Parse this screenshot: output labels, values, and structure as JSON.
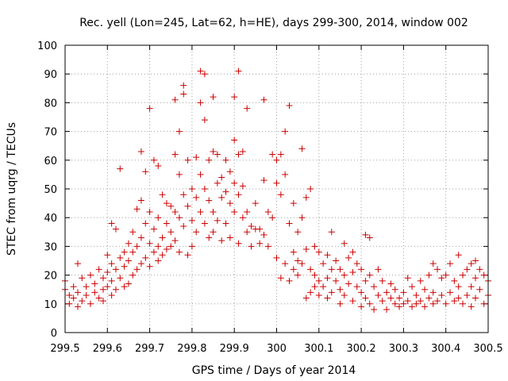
{
  "chart_data": {
    "type": "scatter",
    "title": "Rec. yell (Lon=245, Lat=62, h=HE), days 299-300, 2014, window 002",
    "xlabel": "GPS time / Days of year 2014",
    "ylabel": "STEC from uqrg / TECUs",
    "xlim": [
      299.5,
      300.5
    ],
    "ylim": [
      0,
      100
    ],
    "grid": true,
    "legend": "none",
    "marker": "+",
    "color": "#cc0000",
    "x_ticks": [
      299.5,
      299.6,
      299.7,
      299.8,
      299.9,
      300.0,
      300.1,
      300.2,
      300.3,
      300.4,
      300.5
    ],
    "x_tick_labels": [
      "299.5",
      "299.6",
      "299.7",
      "299.8",
      "299.9",
      "300",
      "300.1",
      "300.2",
      "300.3",
      "300.4",
      "300.5"
    ],
    "y_ticks": [
      0,
      10,
      20,
      30,
      40,
      50,
      60,
      70,
      80,
      90,
      100
    ],
    "y_tick_labels": [
      "0",
      "10",
      "20",
      "30",
      "40",
      "50",
      "60",
      "70",
      "80",
      "90",
      "100"
    ],
    "points": [
      [
        299.5,
        18
      ],
      [
        299.5,
        15
      ],
      [
        299.51,
        13
      ],
      [
        299.51,
        10
      ],
      [
        299.52,
        16
      ],
      [
        299.52,
        12
      ],
      [
        299.53,
        24
      ],
      [
        299.53,
        14
      ],
      [
        299.53,
        9
      ],
      [
        299.54,
        19
      ],
      [
        299.54,
        11
      ],
      [
        299.55,
        16
      ],
      [
        299.55,
        13
      ],
      [
        299.56,
        20
      ],
      [
        299.56,
        10
      ],
      [
        299.57,
        17
      ],
      [
        299.57,
        14
      ],
      [
        299.58,
        22
      ],
      [
        299.58,
        12
      ],
      [
        299.59,
        19
      ],
      [
        299.59,
        15
      ],
      [
        299.59,
        11
      ],
      [
        299.6,
        27
      ],
      [
        299.6,
        21
      ],
      [
        299.6,
        16
      ],
      [
        299.61,
        38
      ],
      [
        299.61,
        24
      ],
      [
        299.61,
        18
      ],
      [
        299.61,
        13
      ],
      [
        299.62,
        36
      ],
      [
        299.62,
        22
      ],
      [
        299.62,
        15
      ],
      [
        299.63,
        57
      ],
      [
        299.63,
        26
      ],
      [
        299.63,
        19
      ],
      [
        299.64,
        28
      ],
      [
        299.64,
        23
      ],
      [
        299.64,
        16
      ],
      [
        299.65,
        31
      ],
      [
        299.65,
        25
      ],
      [
        299.65,
        17
      ],
      [
        299.66,
        35
      ],
      [
        299.66,
        28
      ],
      [
        299.66,
        20
      ],
      [
        299.67,
        43
      ],
      [
        299.67,
        30
      ],
      [
        299.67,
        22
      ],
      [
        299.68,
        63
      ],
      [
        299.68,
        46
      ],
      [
        299.68,
        33
      ],
      [
        299.68,
        24
      ],
      [
        299.69,
        56
      ],
      [
        299.69,
        38
      ],
      [
        299.69,
        26
      ],
      [
        299.7,
        78
      ],
      [
        299.7,
        42
      ],
      [
        299.7,
        31
      ],
      [
        299.7,
        23
      ],
      [
        299.71,
        60
      ],
      [
        299.71,
        36
      ],
      [
        299.71,
        28
      ],
      [
        299.72,
        58
      ],
      [
        299.72,
        40
      ],
      [
        299.72,
        30
      ],
      [
        299.72,
        25
      ],
      [
        299.73,
        48
      ],
      [
        299.73,
        33
      ],
      [
        299.73,
        27
      ],
      [
        299.74,
        45
      ],
      [
        299.74,
        38
      ],
      [
        299.74,
        29
      ],
      [
        299.75,
        44
      ],
      [
        299.75,
        35
      ],
      [
        299.75,
        30
      ],
      [
        299.76,
        81
      ],
      [
        299.76,
        62
      ],
      [
        299.76,
        42
      ],
      [
        299.76,
        32
      ],
      [
        299.77,
        70
      ],
      [
        299.77,
        55
      ],
      [
        299.77,
        40
      ],
      [
        299.77,
        28
      ],
      [
        299.78,
        86
      ],
      [
        299.78,
        83
      ],
      [
        299.78,
        48
      ],
      [
        299.78,
        37
      ],
      [
        299.79,
        60
      ],
      [
        299.79,
        44
      ],
      [
        299.79,
        27
      ],
      [
        299.8,
        50
      ],
      [
        299.8,
        39
      ],
      [
        299.8,
        30
      ],
      [
        299.81,
        61
      ],
      [
        299.81,
        47
      ],
      [
        299.81,
        35
      ],
      [
        299.82,
        91
      ],
      [
        299.82,
        80
      ],
      [
        299.82,
        55
      ],
      [
        299.82,
        42
      ],
      [
        299.83,
        90
      ],
      [
        299.83,
        74
      ],
      [
        299.83,
        50
      ],
      [
        299.83,
        38
      ],
      [
        299.84,
        60
      ],
      [
        299.84,
        46
      ],
      [
        299.84,
        33
      ],
      [
        299.85,
        82
      ],
      [
        299.85,
        63
      ],
      [
        299.85,
        42
      ],
      [
        299.85,
        35
      ],
      [
        299.86,
        62
      ],
      [
        299.86,
        52
      ],
      [
        299.86,
        39
      ],
      [
        299.87,
        54
      ],
      [
        299.87,
        47
      ],
      [
        299.87,
        32
      ],
      [
        299.88,
        60
      ],
      [
        299.88,
        49
      ],
      [
        299.88,
        38
      ],
      [
        299.89,
        56
      ],
      [
        299.89,
        45
      ],
      [
        299.89,
        33
      ],
      [
        299.9,
        82
      ],
      [
        299.9,
        67
      ],
      [
        299.9,
        52
      ],
      [
        299.9,
        42
      ],
      [
        299.91,
        91
      ],
      [
        299.91,
        62
      ],
      [
        299.91,
        48
      ],
      [
        299.91,
        31
      ],
      [
        299.92,
        63
      ],
      [
        299.92,
        51
      ],
      [
        299.92,
        40
      ],
      [
        299.93,
        78
      ],
      [
        299.93,
        42
      ],
      [
        299.93,
        35
      ],
      [
        299.94,
        37
      ],
      [
        299.94,
        30
      ],
      [
        299.95,
        45
      ],
      [
        299.95,
        36
      ],
      [
        299.96,
        36
      ],
      [
        299.96,
        31
      ],
      [
        299.97,
        81
      ],
      [
        299.97,
        53
      ],
      [
        299.97,
        34
      ],
      [
        299.98,
        42
      ],
      [
        299.98,
        30
      ],
      [
        299.99,
        62
      ],
      [
        299.99,
        40
      ],
      [
        300.0,
        60
      ],
      [
        300.0,
        52
      ],
      [
        300.0,
        26
      ],
      [
        300.01,
        62
      ],
      [
        300.01,
        48
      ],
      [
        300.01,
        19
      ],
      [
        300.02,
        70
      ],
      [
        300.02,
        55
      ],
      [
        300.02,
        24
      ],
      [
        300.03,
        79
      ],
      [
        300.03,
        38
      ],
      [
        300.03,
        18
      ],
      [
        300.04,
        45
      ],
      [
        300.04,
        28
      ],
      [
        300.04,
        22
      ],
      [
        300.05,
        35
      ],
      [
        300.05,
        25
      ],
      [
        300.05,
        20
      ],
      [
        300.06,
        64
      ],
      [
        300.06,
        40
      ],
      [
        300.06,
        24
      ],
      [
        300.07,
        47
      ],
      [
        300.07,
        29
      ],
      [
        300.07,
        12
      ],
      [
        300.08,
        50
      ],
      [
        300.08,
        22
      ],
      [
        300.08,
        14
      ],
      [
        300.09,
        30
      ],
      [
        300.09,
        20
      ],
      [
        300.09,
        16
      ],
      [
        300.1,
        28
      ],
      [
        300.1,
        18
      ],
      [
        300.1,
        13
      ],
      [
        300.11,
        24
      ],
      [
        300.11,
        16
      ],
      [
        300.12,
        27
      ],
      [
        300.12,
        19
      ],
      [
        300.12,
        12
      ],
      [
        300.13,
        35
      ],
      [
        300.13,
        22
      ],
      [
        300.13,
        14
      ],
      [
        300.14,
        25
      ],
      [
        300.14,
        18
      ],
      [
        300.15,
        22
      ],
      [
        300.15,
        15
      ],
      [
        300.15,
        10
      ],
      [
        300.16,
        31
      ],
      [
        300.16,
        20
      ],
      [
        300.16,
        13
      ],
      [
        300.17,
        26
      ],
      [
        300.17,
        17
      ],
      [
        300.18,
        28
      ],
      [
        300.18,
        21
      ],
      [
        300.18,
        11
      ],
      [
        300.19,
        24
      ],
      [
        300.19,
        16
      ],
      [
        300.2,
        22
      ],
      [
        300.2,
        14
      ],
      [
        300.2,
        9
      ],
      [
        300.21,
        34
      ],
      [
        300.21,
        18
      ],
      [
        300.21,
        12
      ],
      [
        300.22,
        33
      ],
      [
        300.22,
        20
      ],
      [
        300.22,
        10
      ],
      [
        300.23,
        16
      ],
      [
        300.23,
        8
      ],
      [
        300.24,
        22
      ],
      [
        300.24,
        13
      ],
      [
        300.25,
        18
      ],
      [
        300.25,
        11
      ],
      [
        300.26,
        14
      ],
      [
        300.26,
        8
      ],
      [
        300.27,
        17
      ],
      [
        300.27,
        12
      ],
      [
        300.28,
        15
      ],
      [
        300.28,
        10
      ],
      [
        300.29,
        12
      ],
      [
        300.29,
        9
      ],
      [
        300.3,
        14
      ],
      [
        300.3,
        10
      ],
      [
        300.31,
        19
      ],
      [
        300.31,
        11
      ],
      [
        300.32,
        16
      ],
      [
        300.32,
        9
      ],
      [
        300.33,
        13
      ],
      [
        300.33,
        10
      ],
      [
        300.34,
        18
      ],
      [
        300.34,
        11
      ],
      [
        300.35,
        15
      ],
      [
        300.35,
        9
      ],
      [
        300.36,
        20
      ],
      [
        300.36,
        12
      ],
      [
        300.37,
        24
      ],
      [
        300.37,
        14
      ],
      [
        300.37,
        10
      ],
      [
        300.38,
        22
      ],
      [
        300.38,
        11
      ],
      [
        300.39,
        19
      ],
      [
        300.39,
        13
      ],
      [
        300.4,
        20
      ],
      [
        300.4,
        10
      ],
      [
        300.41,
        24
      ],
      [
        300.41,
        14
      ],
      [
        300.42,
        18
      ],
      [
        300.42,
        11
      ],
      [
        300.43,
        27
      ],
      [
        300.43,
        16
      ],
      [
        300.43,
        12
      ],
      [
        300.44,
        20
      ],
      [
        300.44,
        10
      ],
      [
        300.45,
        22
      ],
      [
        300.45,
        13
      ],
      [
        300.46,
        24
      ],
      [
        300.46,
        16
      ],
      [
        300.46,
        9
      ],
      [
        300.47,
        25
      ],
      [
        300.47,
        19
      ],
      [
        300.47,
        12
      ],
      [
        300.48,
        22
      ],
      [
        300.48,
        15
      ],
      [
        300.49,
        20
      ],
      [
        300.49,
        10
      ],
      [
        300.5,
        18
      ],
      [
        300.5,
        13
      ]
    ]
  }
}
